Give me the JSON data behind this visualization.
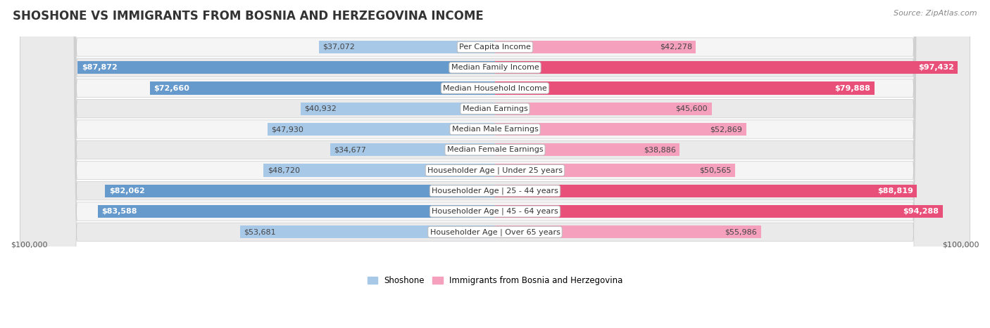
{
  "title": "SHOSHONE VS IMMIGRANTS FROM BOSNIA AND HERZEGOVINA INCOME",
  "source": "Source: ZipAtlas.com",
  "categories": [
    "Per Capita Income",
    "Median Family Income",
    "Median Household Income",
    "Median Earnings",
    "Median Male Earnings",
    "Median Female Earnings",
    "Householder Age | Under 25 years",
    "Householder Age | 25 - 44 years",
    "Householder Age | 45 - 64 years",
    "Householder Age | Over 65 years"
  ],
  "shoshone_values": [
    37072,
    87872,
    72660,
    40932,
    47930,
    34677,
    48720,
    82062,
    83588,
    53681
  ],
  "bosnia_values": [
    42278,
    97432,
    79888,
    45600,
    52869,
    38886,
    50565,
    88819,
    94288,
    55986
  ],
  "shoshone_labels": [
    "$37,072",
    "$87,872",
    "$72,660",
    "$40,932",
    "$47,930",
    "$34,677",
    "$48,720",
    "$82,062",
    "$83,588",
    "$53,681"
  ],
  "bosnia_labels": [
    "$42,278",
    "$97,432",
    "$79,888",
    "$45,600",
    "$52,869",
    "$38,886",
    "$50,565",
    "$88,819",
    "$94,288",
    "$55,986"
  ],
  "max_value": 100000,
  "shoshone_color_light": "#a8c8e8",
  "shoshone_color_dark": "#6699cc",
  "bosnia_color_light": "#f5a0bc",
  "bosnia_color_dark": "#e8507a",
  "dark_threshold": 60000,
  "row_bg_odd": "#f0f0f0",
  "row_bg_even": "#e4e4e4",
  "row_bg_light": "#f5f5f5",
  "row_bg_dark": "#eaeaea",
  "legend_shoshone": "Shoshone",
  "legend_bosnia": "Immigrants from Bosnia and Herzegovina",
  "xlabel_left": "$100,000",
  "xlabel_right": "$100,000",
  "bar_height": 0.62,
  "title_fontsize": 12,
  "label_fontsize": 8,
  "category_fontsize": 8,
  "source_fontsize": 8
}
